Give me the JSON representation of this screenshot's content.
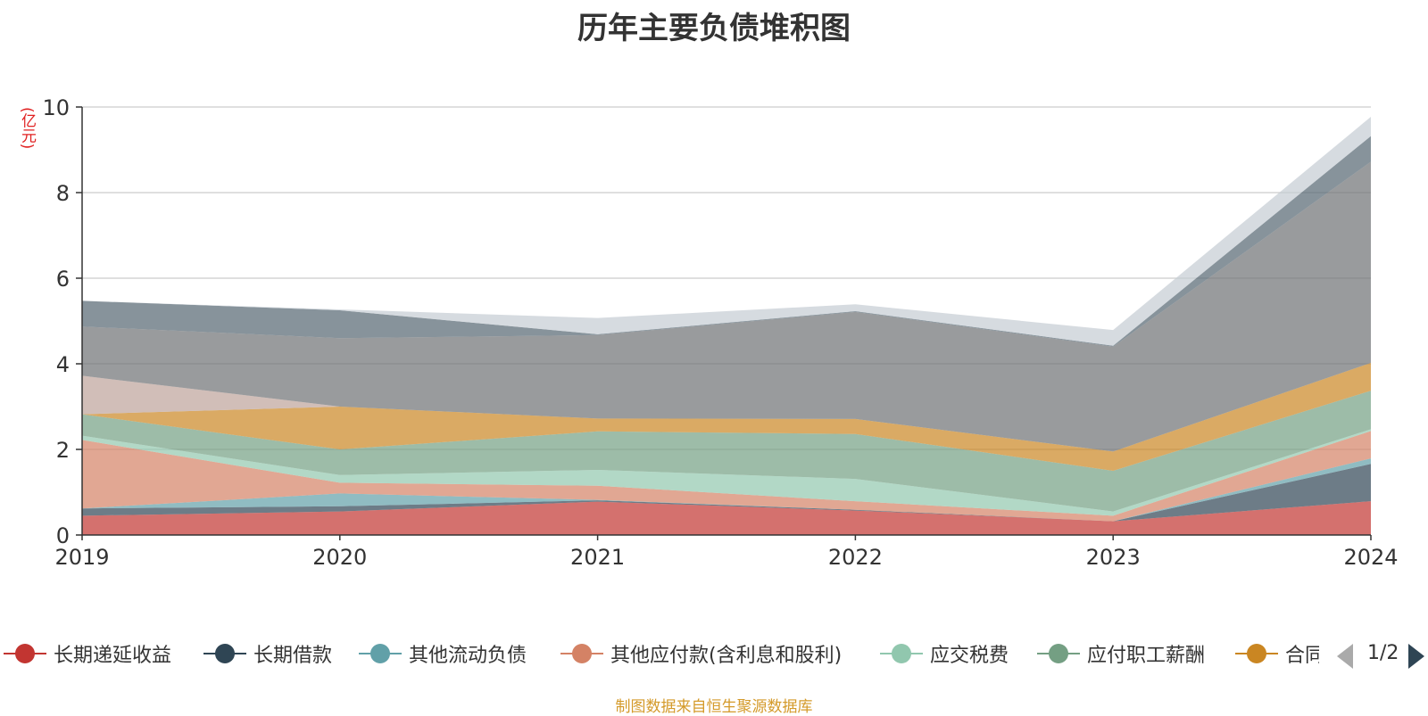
{
  "chart_data": {
    "type": "area",
    "stacked": true,
    "title": "历年主要负债堆积图",
    "unit": "(亿元)",
    "categories": [
      "2019",
      "2020",
      "2021",
      "2022",
      "2023",
      "2024"
    ],
    "ylim": [
      0,
      10
    ],
    "yticks": [
      "0",
      "2",
      "4",
      "6",
      "8",
      "10"
    ],
    "grid": true,
    "legend_position": "bottom",
    "series": [
      {
        "name": "长期递延收益",
        "color": "#c23531",
        "values": [
          0.45,
          0.55,
          0.78,
          0.57,
          0.32,
          0.79
        ]
      },
      {
        "name": "长期借款",
        "color": "#2f4554",
        "values": [
          0.17,
          0.12,
          0.03,
          0.02,
          0.0,
          0.87
        ]
      },
      {
        "name": "其他流动负债",
        "color": "#61a0a8",
        "values": [
          0.0,
          0.3,
          0.01,
          0.0,
          0.0,
          0.13
        ]
      },
      {
        "name": "其他应付款(含利息和股利)",
        "color": "#d48265",
        "values": [
          1.6,
          0.25,
          0.33,
          0.2,
          0.13,
          0.64
        ]
      },
      {
        "name": "应交税费",
        "color": "#91c7ae",
        "values": [
          0.1,
          0.18,
          0.37,
          0.52,
          0.1,
          0.04
        ]
      },
      {
        "name": "应付职工薪酬",
        "color": "#749f83",
        "values": [
          0.5,
          0.6,
          0.9,
          1.05,
          0.95,
          0.9
        ]
      },
      {
        "name": "合同负债",
        "color": "#ca8622",
        "values": [
          0.0,
          1.0,
          0.3,
          0.35,
          0.45,
          0.65
        ]
      },
      {
        "name": "",
        "color": "#bda29a",
        "values": [
          0.9,
          0.0,
          0.0,
          0.0,
          0.0,
          0.0
        ]
      },
      {
        "name": "",
        "color": "#6e7074",
        "values": [
          1.15,
          1.6,
          1.95,
          2.5,
          2.45,
          4.7
        ]
      },
      {
        "name": "",
        "color": "#546570",
        "values": [
          0.6,
          0.65,
          0.02,
          0.02,
          0.02,
          0.6
        ]
      },
      {
        "name": "",
        "color": "#c4ccd3",
        "values": [
          0.0,
          0.02,
          0.38,
          0.16,
          0.37,
          0.45
        ]
      }
    ]
  },
  "legend": {
    "items": [
      {
        "label": "长期递延收益",
        "color": "#c23531"
      },
      {
        "label": "长期借款",
        "color": "#2f4554"
      },
      {
        "label": "其他流动负债",
        "color": "#61a0a8"
      },
      {
        "label": "其他应付款(含利息和股利)",
        "color": "#d48265"
      },
      {
        "label": "应交税费",
        "color": "#91c7ae"
      },
      {
        "label": "应付职工薪酬",
        "color": "#749f83"
      },
      {
        "label": "合同负债",
        "color": "#ca8622"
      }
    ],
    "page_indicator": "1/2"
  },
  "source_note": "制图数据来自恒生聚源数据库"
}
